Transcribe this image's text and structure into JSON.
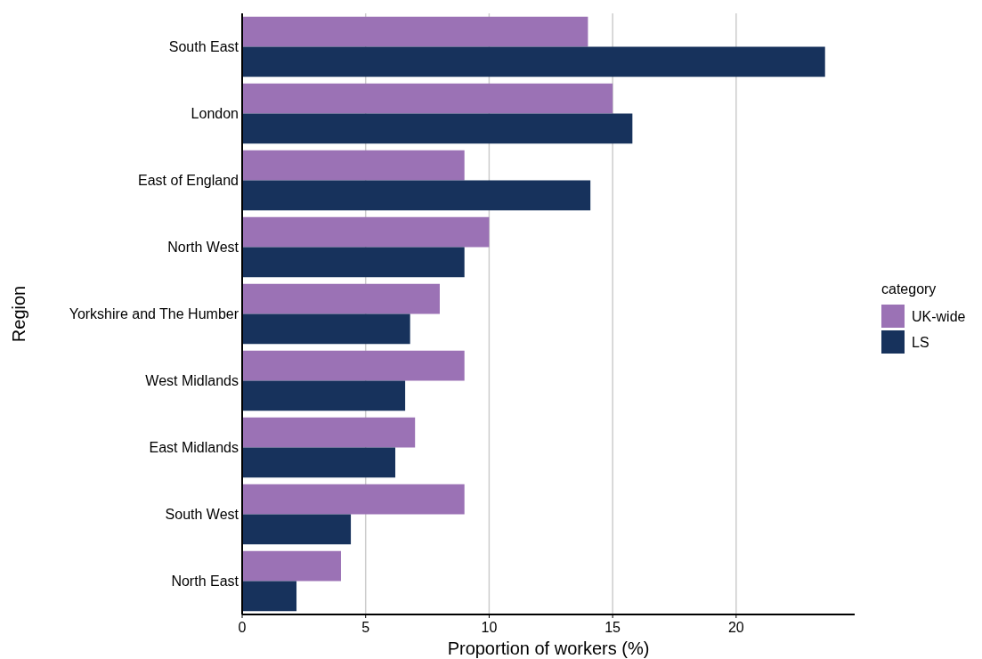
{
  "chart_data": {
    "type": "bar",
    "orientation": "horizontal",
    "xlabel": "Proportion of workers (%)",
    "ylabel": "Region",
    "legend_title": "category",
    "legend": "right",
    "grid": "x",
    "categories": [
      "South East",
      "London",
      "East of England",
      "North West",
      "Yorkshire and The Humber",
      "West Midlands",
      "East Midlands",
      "South West",
      "North East"
    ],
    "series": [
      {
        "name": "UK-wide",
        "color": "#9b72b5",
        "values": [
          14,
          15,
          9,
          10,
          8,
          9,
          7,
          9,
          4
        ]
      },
      {
        "name": "LS",
        "color": "#17325c",
        "values": [
          23.6,
          15.8,
          14.1,
          9,
          6.8,
          6.6,
          6.2,
          4.4,
          2.2
        ]
      }
    ],
    "xlim": [
      0,
      24.8
    ],
    "xticks": [
      0,
      5,
      10,
      15,
      20
    ]
  }
}
